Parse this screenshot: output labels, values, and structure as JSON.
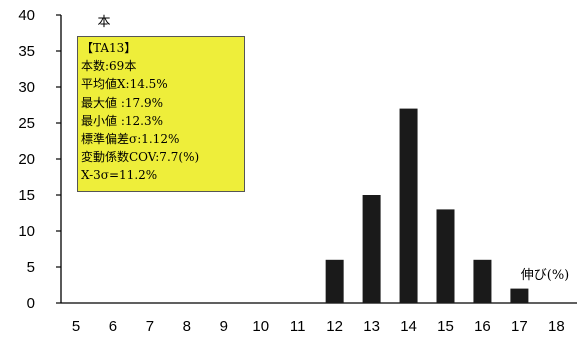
{
  "chart_data": {
    "type": "bar",
    "categories": [
      "5",
      "6",
      "7",
      "8",
      "9",
      "10",
      "11",
      "12",
      "13",
      "14",
      "15",
      "16",
      "17",
      "18"
    ],
    "values": [
      0,
      0,
      0,
      0,
      0,
      0,
      0,
      6,
      15,
      27,
      13,
      6,
      2,
      0
    ],
    "ylim": [
      0,
      40
    ],
    "yticks": [
      "0",
      "5",
      "10",
      "15",
      "20",
      "25",
      "30",
      "35",
      "40"
    ],
    "ylabel": "本",
    "xlabel": "伸び(%)",
    "bar_color": "#1a1a1a",
    "stats_box": {
      "title": "【TA13】",
      "lines": [
        "本数:69本",
        "平均値X:14.5%",
        "最大値 :17.9%",
        "最小値 :12.3%",
        "標準偏差σ:1.12%",
        "変動係数COV:7.7(%)",
        "X-3σ=11.2%"
      ],
      "background": "#eeee3a"
    }
  }
}
